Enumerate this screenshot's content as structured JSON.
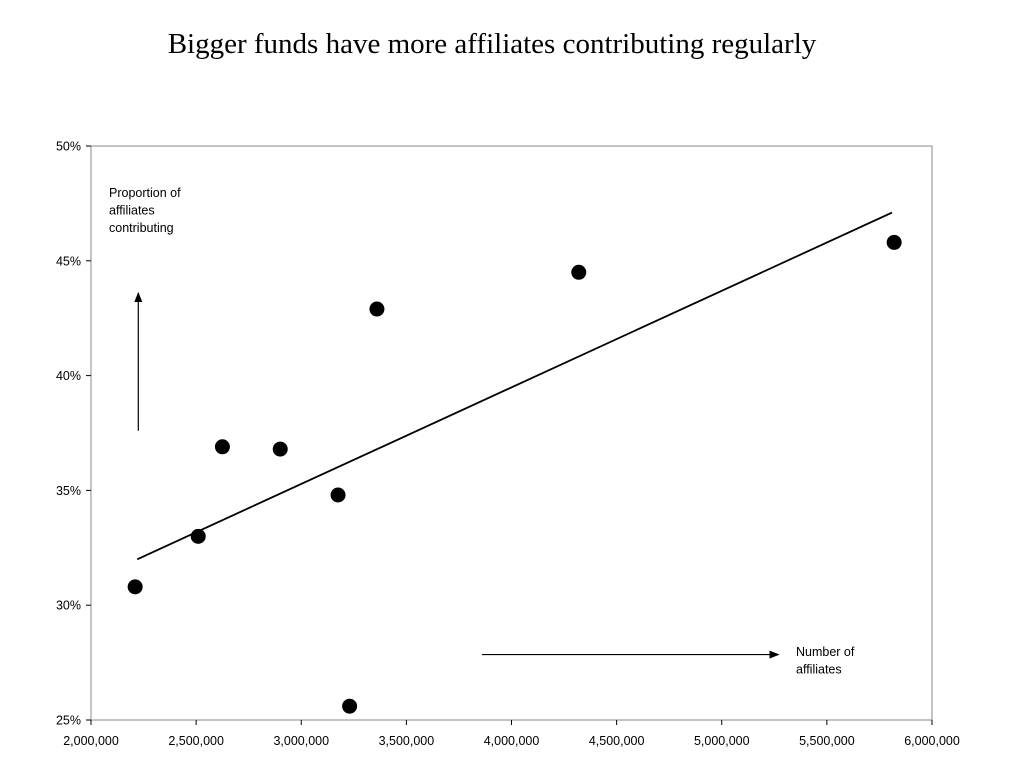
{
  "chart_data": {
    "type": "scatter",
    "title": "Bigger funds have more affiliates contributing regularly",
    "xlabel": "",
    "ylabel": "",
    "xlim": [
      2000000,
      6000000
    ],
    "ylim": [
      0.25,
      0.5
    ],
    "x_ticks": [
      2000000,
      2500000,
      3000000,
      3500000,
      4000000,
      4500000,
      5000000,
      5500000,
      6000000
    ],
    "x_tick_labels": [
      "2,000,000",
      "2,500,000",
      "3,000,000",
      "3,500,000",
      "4,000,000",
      "4,500,000",
      "5,000,000",
      "5,500,000",
      "6,000,000"
    ],
    "y_ticks": [
      0.25,
      0.3,
      0.35,
      0.4,
      0.45,
      0.5
    ],
    "y_tick_labels": [
      "25%",
      "30%",
      "35%",
      "40%",
      "45%",
      "50%"
    ],
    "grid": false,
    "points": [
      {
        "x": 2210000,
        "y": 0.308
      },
      {
        "x": 2510000,
        "y": 0.33
      },
      {
        "x": 2625000,
        "y": 0.369
      },
      {
        "x": 2900000,
        "y": 0.368
      },
      {
        "x": 3175000,
        "y": 0.348
      },
      {
        "x": 3230000,
        "y": 0.256
      },
      {
        "x": 3360000,
        "y": 0.429
      },
      {
        "x": 4320000,
        "y": 0.445
      },
      {
        "x": 5820000,
        "y": 0.458
      }
    ],
    "trendline": {
      "x1": 2220000,
      "y1": 0.32,
      "x2": 5810000,
      "y2": 0.471
    },
    "marker_color": "#000000",
    "annotations": [
      {
        "id": "y-note",
        "lines": [
          "Proportion of",
          "affiliates",
          "contributing"
        ],
        "arrow": {
          "x1": 2225000,
          "y1": 0.376,
          "x2": 2225000,
          "y2": 0.436
        }
      },
      {
        "id": "x-note",
        "lines": [
          "Number of",
          "affiliates"
        ],
        "arrow": {
          "x1": 3860000,
          "y1": 0.2785,
          "x2": 5270000,
          "y2": 0.2785
        }
      }
    ]
  }
}
